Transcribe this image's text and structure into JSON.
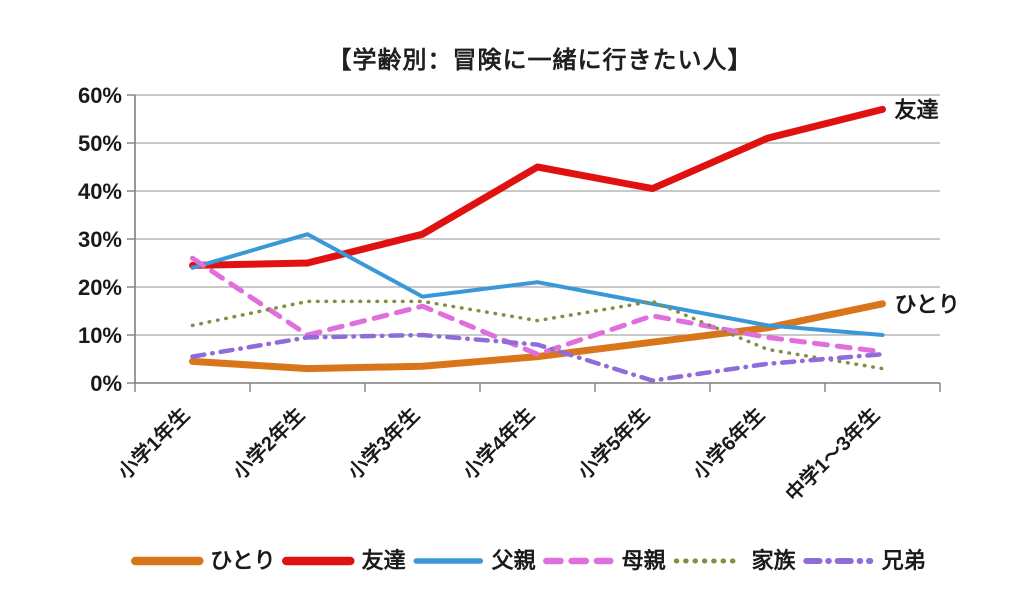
{
  "title": "【学齢別：冒険に一緒に行きたい人】",
  "chart_data": {
    "type": "line",
    "title": "【学齢別：冒険に一緒に行きたい人】",
    "categories": [
      "小学1年生",
      "小学2年生",
      "小学3年生",
      "小学4年生",
      "小学5年生",
      "小学6年生",
      "中学1〜3年生"
    ],
    "y_axis": {
      "min": 0,
      "max": 60,
      "step": 10,
      "tick_labels": [
        "0%",
        "10%",
        "20%",
        "30%",
        "40%",
        "50%",
        "60%"
      ]
    },
    "grid": true,
    "legend_position": "bottom",
    "unit": "%",
    "series": [
      {
        "name": "ひとり",
        "color": "#d9761c",
        "style": "solid-thick",
        "end_label": "ひとり",
        "values": [
          4.5,
          3,
          3.5,
          5.5,
          8.5,
          11.5,
          16.5
        ]
      },
      {
        "name": "友達",
        "color": "#e01111",
        "style": "solid-thick",
        "end_label": "友達",
        "values": [
          24.5,
          25,
          31,
          45,
          40.5,
          51,
          57
        ]
      },
      {
        "name": "父親",
        "color": "#3a98d9",
        "style": "solid",
        "values": [
          24,
          31,
          18,
          21,
          16.5,
          12,
          10
        ]
      },
      {
        "name": "母親",
        "color": "#e06edd",
        "style": "dashed",
        "values": [
          26,
          10,
          16,
          6,
          14,
          9.5,
          6.5
        ]
      },
      {
        "name": "家族",
        "color": "#7f8f45",
        "style": "dotted",
        "values": [
          12,
          17,
          17,
          13,
          17,
          7,
          3
        ]
      },
      {
        "name": "兄弟",
        "color": "#8e6cd9",
        "style": "dash-dot",
        "values": [
          5.5,
          9.5,
          10,
          8,
          0.5,
          4,
          6
        ]
      }
    ],
    "colors": {
      "grid": "#a9a9a9",
      "axis": "#7f7f7f",
      "text": "#1a1a1a"
    }
  }
}
